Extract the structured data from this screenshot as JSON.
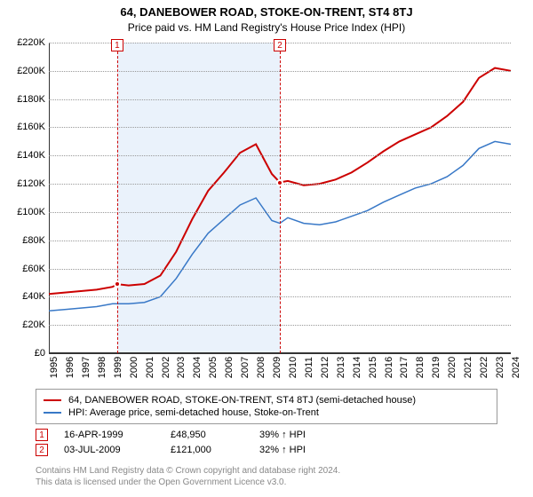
{
  "title": "64, DANEBOWER ROAD, STOKE-ON-TRENT, ST4 8TJ",
  "subtitle": "Price paid vs. HM Land Registry's House Price Index (HPI)",
  "chart": {
    "type": "line",
    "background_color": "#ffffff",
    "grid_color": "#999999",
    "axis_color": "#333333",
    "ylim": [
      0,
      220000
    ],
    "ytick_step": 20000,
    "ylabels": [
      "£0",
      "£20K",
      "£40K",
      "£60K",
      "£80K",
      "£100K",
      "£120K",
      "£140K",
      "£160K",
      "£180K",
      "£200K",
      "£220K"
    ],
    "xlim": [
      1995,
      2024
    ],
    "xlabels": [
      "1995",
      "1996",
      "1997",
      "1998",
      "1999",
      "2000",
      "2001",
      "2002",
      "2003",
      "2004",
      "2005",
      "2006",
      "2007",
      "2008",
      "2009",
      "2010",
      "2011",
      "2012",
      "2013",
      "2014",
      "2015",
      "2016",
      "2017",
      "2018",
      "2019",
      "2020",
      "2021",
      "2022",
      "2023",
      "2024"
    ],
    "shaded_region": {
      "from": 1999.29,
      "to": 2009.5,
      "color": "#eaf2fb"
    },
    "series": [
      {
        "name": "price_paid",
        "label": "64, DANEBOWER ROAD, STOKE-ON-TRENT, ST4 8TJ (semi-detached house)",
        "color": "#cc0000",
        "line_width": 2,
        "points": [
          [
            1995,
            42000
          ],
          [
            1996,
            43000
          ],
          [
            1997,
            44000
          ],
          [
            1998,
            45000
          ],
          [
            1999,
            47000
          ],
          [
            1999.29,
            48950
          ],
          [
            2000,
            48000
          ],
          [
            2001,
            49000
          ],
          [
            2002,
            55000
          ],
          [
            2003,
            72000
          ],
          [
            2004,
            95000
          ],
          [
            2005,
            115000
          ],
          [
            2006,
            128000
          ],
          [
            2007,
            142000
          ],
          [
            2008,
            148000
          ],
          [
            2009,
            127000
          ],
          [
            2009.5,
            121000
          ],
          [
            2010,
            122000
          ],
          [
            2011,
            119000
          ],
          [
            2012,
            120000
          ],
          [
            2013,
            123000
          ],
          [
            2014,
            128000
          ],
          [
            2015,
            135000
          ],
          [
            2016,
            143000
          ],
          [
            2017,
            150000
          ],
          [
            2018,
            155000
          ],
          [
            2019,
            160000
          ],
          [
            2020,
            168000
          ],
          [
            2021,
            178000
          ],
          [
            2022,
            195000
          ],
          [
            2023,
            202000
          ],
          [
            2024,
            200000
          ]
        ]
      },
      {
        "name": "hpi",
        "label": "HPI: Average price, semi-detached house, Stoke-on-Trent",
        "color": "#3878c7",
        "line_width": 1.5,
        "points": [
          [
            1995,
            30000
          ],
          [
            1996,
            31000
          ],
          [
            1997,
            32000
          ],
          [
            1998,
            33000
          ],
          [
            1999,
            35000
          ],
          [
            2000,
            35000
          ],
          [
            2001,
            36000
          ],
          [
            2002,
            40000
          ],
          [
            2003,
            53000
          ],
          [
            2004,
            70000
          ],
          [
            2005,
            85000
          ],
          [
            2006,
            95000
          ],
          [
            2007,
            105000
          ],
          [
            2008,
            110000
          ],
          [
            2009,
            94000
          ],
          [
            2009.5,
            92000
          ],
          [
            2010,
            96000
          ],
          [
            2011,
            92000
          ],
          [
            2012,
            91000
          ],
          [
            2013,
            93000
          ],
          [
            2014,
            97000
          ],
          [
            2015,
            101000
          ],
          [
            2016,
            107000
          ],
          [
            2017,
            112000
          ],
          [
            2018,
            117000
          ],
          [
            2019,
            120000
          ],
          [
            2020,
            125000
          ],
          [
            2021,
            133000
          ],
          [
            2022,
            145000
          ],
          [
            2023,
            150000
          ],
          [
            2024,
            148000
          ]
        ]
      }
    ],
    "markers": [
      {
        "index": "1",
        "x": 1999.29,
        "y": 48950,
        "dot_color": "#cc0000"
      },
      {
        "index": "2",
        "x": 2009.5,
        "y": 121000,
        "dot_color": "#cc0000"
      }
    ]
  },
  "legend": {
    "items": [
      {
        "color": "#cc0000",
        "text": "64, DANEBOWER ROAD, STOKE-ON-TRENT, ST4 8TJ (semi-detached house)"
      },
      {
        "color": "#3878c7",
        "text": "HPI: Average price, semi-detached house, Stoke-on-Trent"
      }
    ]
  },
  "sales": [
    {
      "index": "1",
      "date": "16-APR-1999",
      "price": "£48,950",
      "delta": "39% ↑ HPI"
    },
    {
      "index": "2",
      "date": "03-JUL-2009",
      "price": "£121,000",
      "delta": "32% ↑ HPI"
    }
  ],
  "footnote": {
    "line1": "Contains HM Land Registry data © Crown copyright and database right 2024.",
    "line2": "This data is licensed under the Open Government Licence v3.0."
  }
}
